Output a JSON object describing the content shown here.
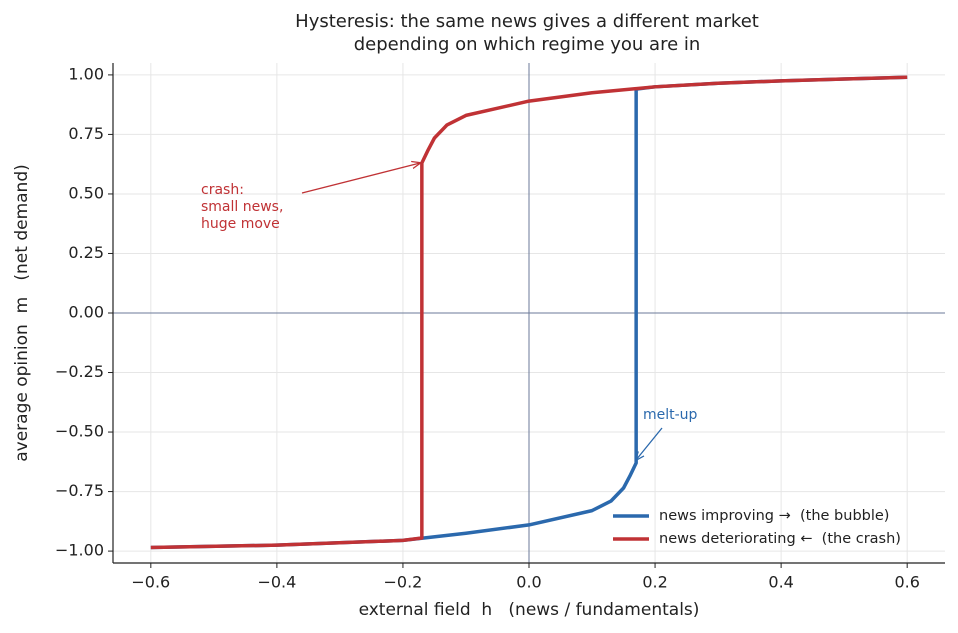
{
  "chart_data": {
    "type": "line",
    "title": [
      "Hysteresis: the same news gives a different market",
      "depending on which regime you are in"
    ],
    "x_label": "external field  h   (news / fundamentals)",
    "y_label": "average opinion  m   (net demand)",
    "xlim": [
      -0.66,
      0.66
    ],
    "ylim": [
      -1.05,
      1.05
    ],
    "xticks": [
      {
        "value": -0.6,
        "label": "−0.6"
      },
      {
        "value": -0.4,
        "label": "−0.4"
      },
      {
        "value": -0.2,
        "label": "−0.2"
      },
      {
        "value": 0,
        "label": "0.0"
      },
      {
        "value": 0.2,
        "label": "0.2"
      },
      {
        "value": 0.4,
        "label": "0.4"
      },
      {
        "value": 0.6,
        "label": "0.6"
      }
    ],
    "yticks": [
      {
        "value": 1,
        "label": "1.00"
      },
      {
        "value": 0.75,
        "label": "0.75"
      },
      {
        "value": 0.5,
        "label": "0.50"
      },
      {
        "value": 0.25,
        "label": "0.25"
      },
      {
        "value": 0,
        "label": "0.00"
      },
      {
        "value": -0.25,
        "label": "−0.25"
      },
      {
        "value": -0.5,
        "label": "−0.50"
      },
      {
        "value": -0.75,
        "label": "−0.75"
      },
      {
        "value": -1,
        "label": "−1.00"
      }
    ],
    "grid": true,
    "legend": "lower right",
    "series": [
      {
        "name": "news improving →  (the bubble)",
        "color": "#2b69ad",
        "x": [
          -0.6,
          -0.4,
          -0.2,
          -0.1,
          0,
          0.1,
          0.13,
          0.15,
          0.16,
          0.17,
          0.17,
          0.2,
          0.3,
          0.4,
          0.5,
          0.6
        ],
        "values": [
          -0.985,
          -0.975,
          -0.955,
          -0.925,
          -0.89,
          -0.83,
          -0.79,
          -0.735,
          -0.685,
          -0.63,
          0.94,
          0.95,
          0.965,
          0.975,
          0.983,
          0.99
        ]
      },
      {
        "name": "news deteriorating ←  (the crash)",
        "color": "#c03235",
        "x": [
          -0.6,
          -0.4,
          -0.2,
          -0.17,
          -0.17,
          -0.16,
          -0.15,
          -0.13,
          -0.1,
          0,
          0.1,
          0.2,
          0.3,
          0.4,
          0.5,
          0.6
        ],
        "values": [
          -0.985,
          -0.975,
          -0.955,
          -0.945,
          0.63,
          0.685,
          0.735,
          0.79,
          0.83,
          0.89,
          0.925,
          0.95,
          0.965,
          0.975,
          0.983,
          0.99
        ]
      }
    ],
    "annotations": [
      {
        "lines": [
          "crash:",
          "small news,",
          "huge move"
        ],
        "color": "#c03235"
      },
      {
        "lines": [
          "melt-up"
        ],
        "color": "#2b69ad"
      }
    ]
  }
}
